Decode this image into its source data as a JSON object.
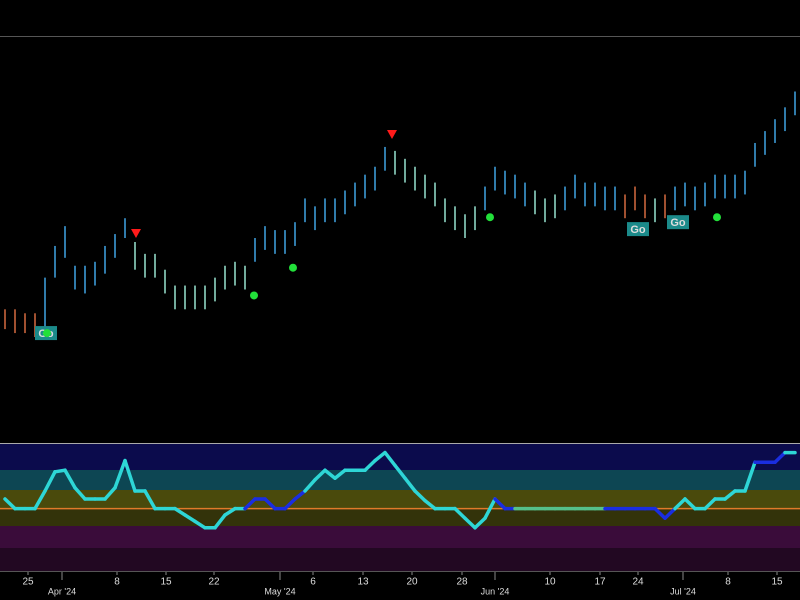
{
  "chart_data": [
    {
      "type": "ohlc",
      "xlim": [
        0,
        80
      ],
      "ylim": [
        0,
        101
      ],
      "high": [
        33,
        33,
        32,
        32,
        41,
        49,
        54,
        44,
        44,
        45,
        49,
        52,
        56,
        50,
        47,
        47,
        43,
        39,
        39,
        39,
        39,
        41,
        44,
        45,
        44,
        51,
        54,
        53,
        53,
        55,
        61,
        59,
        61,
        61,
        63,
        65,
        67,
        69,
        74,
        73,
        71,
        69,
        67,
        65,
        61,
        59,
        57,
        59,
        64,
        69,
        68,
        67,
        65,
        63,
        61,
        62,
        64,
        67,
        65,
        65,
        64,
        64,
        62,
        64,
        62,
        61,
        62,
        64,
        65,
        64,
        65,
        67,
        67,
        67,
        68,
        75,
        78,
        81,
        84,
        88
      ],
      "low": [
        28,
        27,
        27,
        26,
        27,
        41,
        46,
        38,
        37,
        39,
        42,
        46,
        51,
        43,
        41,
        41,
        37,
        33,
        33,
        33,
        33,
        35,
        38,
        39,
        38,
        45,
        48,
        47,
        47,
        49,
        55,
        53,
        55,
        55,
        57,
        59,
        61,
        63,
        68,
        67,
        65,
        63,
        61,
        59,
        55,
        53,
        51,
        53,
        58,
        63,
        62,
        61,
        59,
        57,
        55,
        56,
        58,
        61,
        59,
        59,
        58,
        58,
        56,
        58,
        56,
        55,
        56,
        58,
        59,
        58,
        59,
        61,
        61,
        61,
        62,
        69,
        72,
        75,
        78,
        82
      ],
      "bar_colors": [
        "#c8643c",
        "#c8643c",
        "#c8643c",
        "#c8643c",
        "#3c9ad6",
        "#3c9ad6",
        "#3c9ad6",
        "#3c9ad6",
        "#3c9ad6",
        "#3c9ad6",
        "#3c9ad6",
        "#3c9ad6",
        "#3c9ad6",
        "#8ed6c4",
        "#8ed6c4",
        "#8ed6c4",
        "#8ed6c4",
        "#8ed6c4",
        "#8ed6c4",
        "#8ed6c4",
        "#8ed6c4",
        "#8ed6c4",
        "#8ed6c4",
        "#8ed6c4",
        "#8ed6c4",
        "#3c9ad6",
        "#3c9ad6",
        "#3c9ad6",
        "#3c9ad6",
        "#3c9ad6",
        "#3c9ad6",
        "#3c9ad6",
        "#3c9ad6",
        "#3c9ad6",
        "#3c9ad6",
        "#3c9ad6",
        "#3c9ad6",
        "#3c9ad6",
        "#3c9ad6",
        "#8ed6c4",
        "#8ed6c4",
        "#8ed6c4",
        "#8ed6c4",
        "#8ed6c4",
        "#8ed6c4",
        "#8ed6c4",
        "#8ed6c4",
        "#8ed6c4",
        "#3c9ad6",
        "#3c9ad6",
        "#3c9ad6",
        "#3c9ad6",
        "#3c9ad6",
        "#8ed6c4",
        "#8ed6c4",
        "#8ed6c4",
        "#3c9ad6",
        "#3c9ad6",
        "#3c9ad6",
        "#3c9ad6",
        "#3c9ad6",
        "#3c9ad6",
        "#c8643c",
        "#c8643c",
        "#c8643c",
        "#8ed6c4",
        "#c8643c",
        "#3c9ad6",
        "#3c9ad6",
        "#3c9ad6",
        "#3c9ad6",
        "#3c9ad6",
        "#3c9ad6",
        "#3c9ad6",
        "#3c9ad6",
        "#3c9ad6",
        "#3c9ad6",
        "#3c9ad6",
        "#3c9ad6",
        "#3c9ad6"
      ],
      "signals": [
        {
          "kind": "triangle",
          "color": "#ff1a1a",
          "x": 13.6,
          "value": 52
        },
        {
          "kind": "triangle",
          "color": "#ff1a1a",
          "x": 39.2,
          "value": 77
        },
        {
          "kind": "label",
          "label": "Go",
          "color": "#1b8a8a",
          "x": 4.6,
          "value": 27
        },
        {
          "kind": "label",
          "label": "Go",
          "color": "#1b8a8a",
          "x": 63.8,
          "value": 53.25
        },
        {
          "kind": "label",
          "label": "Go",
          "color": "#1b8a8a",
          "x": 67.8,
          "value": 55
        },
        {
          "kind": "dot",
          "color": "#22e03a",
          "x": 4.7,
          "value": 27
        },
        {
          "kind": "dot",
          "color": "#22e03a",
          "x": 25.4,
          "value": 36.5
        },
        {
          "kind": "dot",
          "color": "#22e03a",
          "x": 29.3,
          "value": 43.5
        },
        {
          "kind": "dot",
          "color": "#22e03a",
          "x": 49,
          "value": 56.25
        },
        {
          "kind": "dot",
          "color": "#22e03a",
          "x": 71.7,
          "value": 56.25
        }
      ]
    },
    {
      "type": "line",
      "xlim": [
        0,
        80
      ],
      "ylim": [
        -3.9,
        4.1
      ],
      "values": [
        0.6,
        0,
        0,
        0,
        1.1,
        2.3,
        2.4,
        1.3,
        0.6,
        0.6,
        0.6,
        1.3,
        3,
        1.1,
        1.1,
        0,
        0,
        0,
        -0.4,
        -0.8,
        -1.2,
        -1.2,
        -0.4,
        0,
        0,
        0.6,
        0.6,
        0,
        0,
        0.6,
        1.1,
        1.8,
        2.4,
        1.9,
        2.4,
        2.4,
        2.4,
        3,
        3.5,
        2.7,
        1.9,
        1.1,
        0.5,
        0,
        0,
        0,
        -0.6,
        -1.2,
        -0.6,
        0.6,
        0,
        0,
        0,
        0,
        0,
        0,
        0,
        0,
        0,
        0,
        0,
        0,
        0,
        0,
        0,
        0,
        -0.6,
        0,
        0.6,
        0,
        0,
        0.6,
        0.6,
        1.1,
        1.1,
        2.9,
        2.9,
        2.9,
        3.5,
        3.5
      ],
      "point_colors": [
        "#2ed6d6",
        "#2ed6d6",
        "#2ed6d6",
        "#2ed6d6",
        "#2ed6d6",
        "#2ed6d6",
        "#2ed6d6",
        "#2ed6d6",
        "#2ed6d6",
        "#2ed6d6",
        "#2ed6d6",
        "#2ed6d6",
        "#2ed6d6",
        "#2ed6d6",
        "#2ed6d6",
        "#2ed6d6",
        "#2ed6d6",
        "#2ed6d6",
        "#2ed6d6",
        "#2ed6d6",
        "#2ed6d6",
        "#2ed6d6",
        "#2ed6d6",
        "#2ed6d6",
        "#1a2ee0",
        "#1a2ee0",
        "#1a2ee0",
        "#1a2ee0",
        "#1a2ee0",
        "#1a2ee0",
        "#2ed6d6",
        "#2ed6d6",
        "#2ed6d6",
        "#2ed6d6",
        "#2ed6d6",
        "#2ed6d6",
        "#2ed6d6",
        "#2ed6d6",
        "#2ed6d6",
        "#2ed6d6",
        "#2ed6d6",
        "#2ed6d6",
        "#2ed6d6",
        "#2ed6d6",
        "#2ed6d6",
        "#2ed6d6",
        "#2ed6d6",
        "#2ed6d6",
        "#2ed6d6",
        "#1a2ee0",
        "#1a2ee0",
        "#55c08a",
        "#55c08a",
        "#55c08a",
        "#55c08a",
        "#55c08a",
        "#55c08a",
        "#55c08a",
        "#55c08a",
        "#55c08a",
        "#1a2ee0",
        "#1a2ee0",
        "#1a2ee0",
        "#1a2ee0",
        "#1a2ee0",
        "#1a2ee0",
        "#1a2ee0",
        "#2ed6d6",
        "#2ed6d6",
        "#2ed6d6",
        "#2ed6d6",
        "#2ed6d6",
        "#2ed6d6",
        "#2ed6d6",
        "#2ed6d6",
        "#1a2ee0",
        "#1a2ee0",
        "#1a2ee0",
        "#2ed6d6",
        "#2ed6d6"
      ],
      "reference_line": {
        "value": 0,
        "color": "#e07a2a"
      },
      "xticks": [
        {
          "value": 2.8,
          "label": "25"
        },
        {
          "value": 6.2,
          "label": "Apr '24"
        },
        {
          "value": 11.7,
          "label": "8"
        },
        {
          "value": 16.6,
          "label": "15"
        },
        {
          "value": 21.4,
          "label": "22"
        },
        {
          "value": 28,
          "label": "May '24"
        },
        {
          "value": 31.3,
          "label": "6"
        },
        {
          "value": 36.3,
          "label": "13"
        },
        {
          "value": 41.2,
          "label": "20"
        },
        {
          "value": 46.2,
          "label": "28"
        },
        {
          "value": 49.5,
          "label": "Jun '24"
        },
        {
          "value": 55,
          "label": "10"
        },
        {
          "value": 60,
          "label": "17"
        },
        {
          "value": 63.8,
          "label": "24"
        },
        {
          "value": 68.3,
          "label": "Jul '24"
        },
        {
          "value": 72.8,
          "label": "8"
        },
        {
          "value": 77.7,
          "label": "15"
        }
      ]
    }
  ]
}
